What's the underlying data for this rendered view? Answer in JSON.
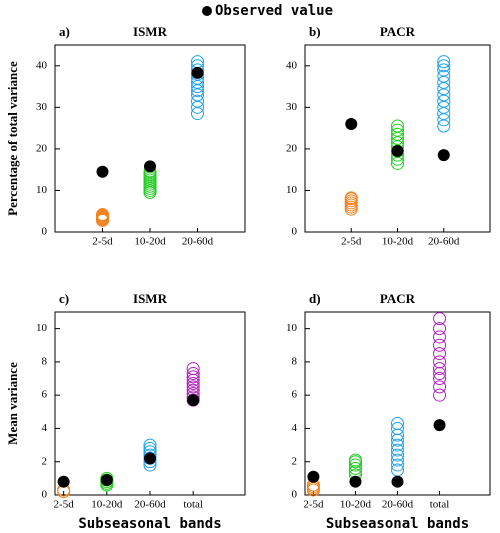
{
  "chart_data": [
    {
      "type": "strip",
      "panel_label": "a)",
      "title": "ISMR",
      "ylabel": "Percentage of total variance",
      "categories": [
        "2-5d",
        "10-20d",
        "20-60d"
      ],
      "ensemble_colors": [
        "#f58220",
        "#22cc22",
        "#1aa0f0"
      ],
      "ensemble": [
        [
          2.8,
          3.0,
          3.2,
          3.4,
          3.6,
          3.8,
          4.0,
          4.2
        ],
        [
          9.5,
          10.0,
          10.5,
          11.0,
          11.5,
          12.0,
          12.5,
          13.0,
          13.5,
          14.0,
          14.5
        ],
        [
          28.5,
          30.0,
          31.5,
          33.0,
          34.0,
          35.0,
          36.0,
          37.0,
          38.0,
          39.0,
          40.0,
          41.0
        ]
      ],
      "observed": {
        "name": "Observed value",
        "color": "#000000",
        "values": [
          14.5,
          15.8,
          38.3
        ]
      },
      "ylim": [
        0,
        45
      ],
      "yticks": [
        0,
        10,
        20,
        30,
        40
      ]
    },
    {
      "type": "strip",
      "panel_label": "b)",
      "title": "PACR",
      "categories": [
        "2-5d",
        "10-20d",
        "20-60d"
      ],
      "ensemble_colors": [
        "#f58220",
        "#22cc22",
        "#1aa0f0"
      ],
      "ensemble": [
        [
          5.5,
          6.0,
          6.5,
          7.0,
          7.5,
          8.0,
          8.2
        ],
        [
          16.5,
          17.5,
          18.5,
          19.5,
          20.5,
          21.5,
          22.5,
          23.5,
          24.5,
          25.5
        ],
        [
          25.5,
          27.0,
          28.5,
          30.0,
          31.5,
          33.0,
          34.5,
          36.0,
          37.5,
          39.0,
          40.0,
          41.0
        ]
      ],
      "observed": {
        "color": "#000000",
        "values": [
          26.0,
          19.5,
          18.5
        ]
      },
      "ylim": [
        0,
        45
      ],
      "yticks": [
        0,
        10,
        20,
        30,
        40
      ]
    },
    {
      "type": "strip",
      "panel_label": "c)",
      "title": "ISMR",
      "ylabel": "Mean variance",
      "xlabel": "Subseasonal bands",
      "categories": [
        "2-5d",
        "10-20d",
        "20-60d",
        "total"
      ],
      "ensemble_colors": [
        "#f58220",
        "#22cc22",
        "#1aa0f0",
        "#b020c0"
      ],
      "ensemble": [
        [
          0.2,
          0.3
        ],
        [
          0.6,
          0.7,
          0.8,
          0.9,
          1.0
        ],
        [
          1.8,
          2.0,
          2.2,
          2.4,
          2.6,
          2.8,
          3.0
        ],
        [
          5.7,
          5.9,
          6.1,
          6.3,
          6.5,
          6.7,
          6.9,
          7.1,
          7.3,
          7.6
        ]
      ],
      "observed": {
        "color": "#000000",
        "values": [
          0.8,
          0.9,
          2.2,
          5.7
        ]
      },
      "ylim": [
        0,
        11
      ],
      "yticks": [
        0,
        2,
        4,
        6,
        8,
        10
      ]
    },
    {
      "type": "strip",
      "panel_label": "d)",
      "title": "PACR",
      "xlabel": "Subseasonal bands",
      "categories": [
        "2-5d",
        "10-20d",
        "20-60d",
        "total"
      ],
      "ensemble_colors": [
        "#f58220",
        "#22cc22",
        "#1aa0f0",
        "#b020c0"
      ],
      "ensemble": [
        [
          0.3,
          0.4,
          0.5,
          0.6
        ],
        [
          1.2,
          1.4,
          1.6,
          1.8,
          2.0,
          2.1
        ],
        [
          1.5,
          1.8,
          2.1,
          2.4,
          2.7,
          3.0,
          3.3,
          3.6,
          4.0,
          4.3
        ],
        [
          6.0,
          6.5,
          7.0,
          7.3,
          7.6,
          8.0,
          8.5,
          9.0,
          9.5,
          10.0,
          10.6
        ]
      ],
      "observed": {
        "color": "#000000",
        "values": [
          1.1,
          0.8,
          0.8,
          4.2
        ]
      },
      "ylim": [
        0,
        11
      ],
      "yticks": [
        0,
        2,
        4,
        6,
        8,
        10
      ]
    }
  ]
}
